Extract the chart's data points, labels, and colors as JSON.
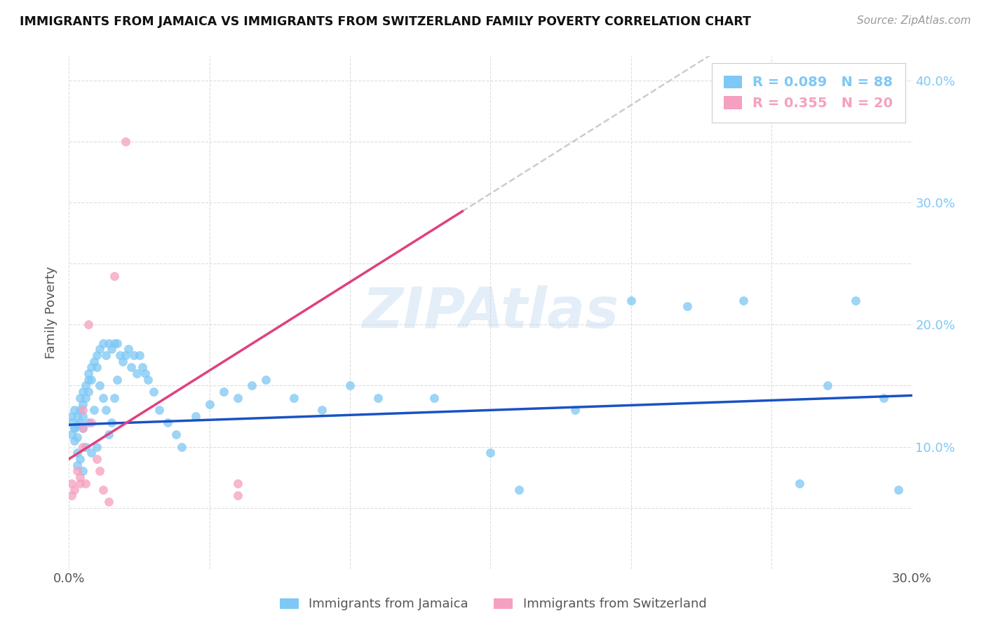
{
  "title": "IMMIGRANTS FROM JAMAICA VS IMMIGRANTS FROM SWITZERLAND FAMILY POVERTY CORRELATION CHART",
  "source": "Source: ZipAtlas.com",
  "ylabel": "Family Poverty",
  "watermark": "ZIPAtlas",
  "legend_jamaica": "Immigrants from Jamaica",
  "legend_switzerland": "Immigrants from Switzerland",
  "R_jamaica": 0.089,
  "N_jamaica": 88,
  "R_switzerland": 0.355,
  "N_switzerland": 20,
  "color_jamaica": "#7ec8f5",
  "color_switzerland": "#f5a0c0",
  "trendline_jamaica_color": "#1a52c4",
  "trendline_switzerland_color": "#e04080",
  "trendline_dashed_color": "#cccccc",
  "xmin": 0.0,
  "xmax": 0.3,
  "ymin": 0.0,
  "ymax": 0.42,
  "jamaica_x": [
    0.001,
    0.001,
    0.001,
    0.002,
    0.002,
    0.002,
    0.002,
    0.003,
    0.003,
    0.003,
    0.003,
    0.003,
    0.004,
    0.004,
    0.004,
    0.004,
    0.005,
    0.005,
    0.005,
    0.005,
    0.005,
    0.006,
    0.006,
    0.006,
    0.007,
    0.007,
    0.007,
    0.007,
    0.008,
    0.008,
    0.008,
    0.009,
    0.009,
    0.01,
    0.01,
    0.01,
    0.011,
    0.011,
    0.012,
    0.012,
    0.013,
    0.013,
    0.014,
    0.014,
    0.015,
    0.015,
    0.016,
    0.016,
    0.017,
    0.017,
    0.018,
    0.019,
    0.02,
    0.021,
    0.022,
    0.023,
    0.024,
    0.025,
    0.026,
    0.027,
    0.028,
    0.03,
    0.032,
    0.035,
    0.038,
    0.04,
    0.045,
    0.05,
    0.055,
    0.06,
    0.065,
    0.07,
    0.08,
    0.09,
    0.1,
    0.11,
    0.13,
    0.15,
    0.16,
    0.18,
    0.2,
    0.22,
    0.24,
    0.26,
    0.27,
    0.28,
    0.29,
    0.295
  ],
  "jamaica_y": [
    0.125,
    0.12,
    0.11,
    0.115,
    0.105,
    0.13,
    0.115,
    0.125,
    0.118,
    0.108,
    0.095,
    0.085,
    0.14,
    0.13,
    0.12,
    0.09,
    0.145,
    0.135,
    0.125,
    0.115,
    0.08,
    0.15,
    0.14,
    0.1,
    0.16,
    0.155,
    0.145,
    0.12,
    0.165,
    0.155,
    0.095,
    0.17,
    0.13,
    0.175,
    0.165,
    0.1,
    0.18,
    0.15,
    0.185,
    0.14,
    0.175,
    0.13,
    0.185,
    0.11,
    0.18,
    0.12,
    0.185,
    0.14,
    0.185,
    0.155,
    0.175,
    0.17,
    0.175,
    0.18,
    0.165,
    0.175,
    0.16,
    0.175,
    0.165,
    0.16,
    0.155,
    0.145,
    0.13,
    0.12,
    0.11,
    0.1,
    0.125,
    0.135,
    0.145,
    0.14,
    0.15,
    0.155,
    0.14,
    0.13,
    0.15,
    0.14,
    0.14,
    0.095,
    0.065,
    0.13,
    0.22,
    0.215,
    0.22,
    0.07,
    0.15,
    0.22,
    0.14,
    0.065
  ],
  "switzerland_x": [
    0.001,
    0.001,
    0.002,
    0.003,
    0.004,
    0.004,
    0.005,
    0.005,
    0.005,
    0.006,
    0.007,
    0.008,
    0.01,
    0.011,
    0.012,
    0.014,
    0.016,
    0.02,
    0.06,
    0.06
  ],
  "switzerland_y": [
    0.07,
    0.06,
    0.065,
    0.08,
    0.075,
    0.07,
    0.13,
    0.115,
    0.1,
    0.07,
    0.2,
    0.12,
    0.09,
    0.08,
    0.065,
    0.055,
    0.24,
    0.35,
    0.07,
    0.06
  ],
  "trendline_jamaica_slope": 0.08,
  "trendline_jamaica_intercept": 0.118,
  "trendline_switzerland_slope": 1.45,
  "trendline_switzerland_intercept": 0.09
}
